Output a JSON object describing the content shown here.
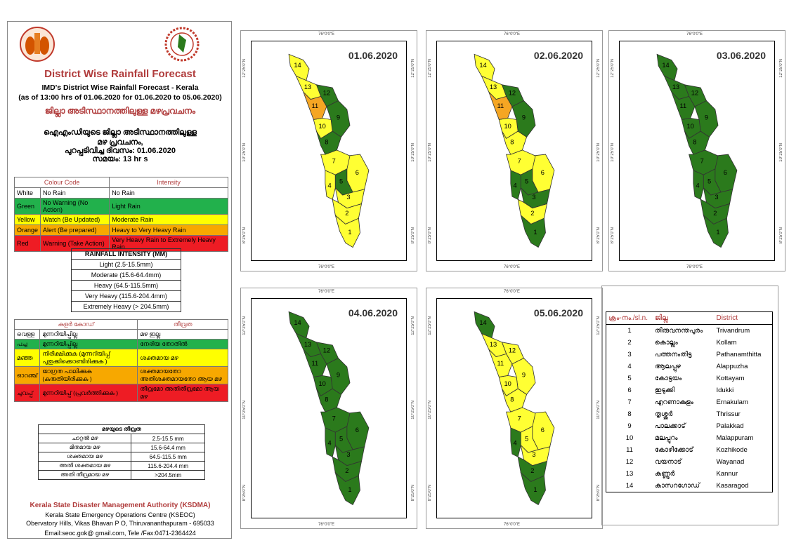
{
  "left_panel": {
    "title": "District Wise Rainfall Forecast",
    "subtitle1": "IMD's District Wise Rainfall Forecast - Kerala",
    "subtitle2": "(as of 13:00 hrs of 01.06.2020  for 01.06.2020  to 05.06.2020)",
    "ml_title": "ജില്ലാ അടിസ്ഥാനത്തിലുള്ള മഴപ്രവചനം",
    "ml_line1": "ഐഎംഡിയുടെ ജില്ലാ  അടിസ്ഥാനത്തിലുള്ള",
    "ml_line2": "മഴ പ്രവചനം,",
    "ml_line3": "പുറപ്പടിവിച്ച   ദിവസം: 01.06.2020",
    "ml_line4": "സമയം: 13 hr s",
    "color_table": {
      "header_code": "Colour Code",
      "header_intensity": "Intensity",
      "rows": [
        {
          "color": "White",
          "meaning": "No Rain",
          "intensity": "No Rain",
          "cls": "bg-white"
        },
        {
          "color": "Green",
          "meaning": "No Warning (No Action)",
          "intensity": "Light Rain",
          "cls": "bg-green"
        },
        {
          "color": "Yellow",
          "meaning": "Watch (Be Updated)",
          "intensity": "Moderate Rain",
          "cls": "bg-yellow"
        },
        {
          "color": "Orange",
          "meaning": "Alert (Be prepared)",
          "intensity": "Heavy to Very Heavy Rain",
          "cls": "bg-orange"
        },
        {
          "color": "Red",
          "meaning": "Warning (Take Action)",
          "intensity": "Very Heavy Rain to Extremely Heavy Rain",
          "cls": "bg-red"
        }
      ]
    },
    "intensity_table": {
      "header": "RAINFALL INTENSITY (MM)",
      "rows": [
        "Light (2.5-15.5mm)",
        "Moderate (15.6-64.4mm)",
        "Heavy (64.5-115.5mm)",
        "Very Heavy (115.6-204.4mm)",
        "Extremely Heavy (> 204.5mm)"
      ]
    },
    "ml_color_table": {
      "header_code": "കളർ കോഡ്",
      "header_intensity": "തീവ്രത",
      "rows": [
        {
          "color": "വെള്ള",
          "meaning": "മുന്നറിയിപ്പില്ല",
          "intensity": "മഴ ഇല്ല",
          "cls": "bg-white"
        },
        {
          "color": "പച്ച",
          "meaning": "മുന്നറിയിപ്പില്ല",
          "intensity": "നേരിയ തോതിൽ",
          "cls": "bg-green"
        },
        {
          "color": "മഞ്ഞ",
          "meaning": "നിരീക്ഷിക്കുക (മുന്നറിയിപ്പ് പുതുക്കിക്കൊണ്ടിരിക്കുക )",
          "intensity": "ശക്തമായ മഴ",
          "cls": "bg-yellow"
        },
        {
          "color": "ഓറഞ്ച്",
          "meaning": "ജാഗ്രത പാലിക്കുക (കരുതിയിരിക്കുക )",
          "intensity": "ശക്തമായതോ അതിശക്തമായതോ ആയ മഴ",
          "cls": "bg-orange"
        },
        {
          "color": "ചുവപ്പ്",
          "meaning": "മുന്നറിയിപ്പ് (പ്രവർത്തിക്കുക )",
          "intensity": "തീവ്രമോ അതിതീവ്രമോ ആയ മഴ",
          "cls": "bg-red"
        }
      ]
    },
    "ml_intensity_table": {
      "header": "മഴയുടെ  തീവ്രത",
      "rows": [
        {
          "label": "ചാറ്റൽ  മഴ",
          "range": "2.5-15.5 mm"
        },
        {
          "label": "മിതമായ  മഴ",
          "range": "15.6-64.4 mm"
        },
        {
          "label": "ശക്തമായ  മഴ",
          "range": "64.5-115.5 mm"
        },
        {
          "label": "അതി ശക്തമായ  മഴ",
          "range": "115.6-204.4 mm"
        },
        {
          "label": "അതി തീവ്രമായ  മഴ",
          "range": ">204.5mm"
        }
      ]
    },
    "footer": {
      "org": "Kerala State Disaster Management Authority (KSDMA)",
      "line1": "Kerala State Emergency Operations Centre (KSEOC)",
      "line2": "Obervatory Hills, Vikas Bhavan P O, Thiruvananthapuram - 695033",
      "line3": "Email:seoc.gok@ gmail.com, Tele /Fax:0471-2364424"
    }
  },
  "tick_labels": {
    "lon": "76°0'0\"E",
    "lat1": "12°25'0\"N",
    "lat2": "10°25'0\"N",
    "lat3": "8°25'0\"N"
  },
  "maps": [
    {
      "date": "01.06.2020",
      "colors": {
        "1": "yellow",
        "2": "yellow",
        "3": "yellow",
        "4": "yellow",
        "5": "green",
        "6": "yellow",
        "7": "yellow",
        "8": "green",
        "9": "green",
        "10": "yellow",
        "11": "orange",
        "12": "green",
        "13": "yellow",
        "14": "yellow"
      }
    },
    {
      "date": "02.06.2020",
      "colors": {
        "1": "green",
        "2": "yellow",
        "3": "green",
        "4": "green",
        "5": "green",
        "6": "yellow",
        "7": "yellow",
        "8": "yellow",
        "9": "green",
        "10": "yellow",
        "11": "orange",
        "12": "green",
        "13": "yellow",
        "14": "yellow"
      }
    },
    {
      "date": "03.06.2020",
      "colors": {
        "1": "green",
        "2": "green",
        "3": "green",
        "4": "green",
        "5": "green",
        "6": "green",
        "7": "green",
        "8": "green",
        "9": "green",
        "10": "green",
        "11": "green",
        "12": "green",
        "13": "green",
        "14": "green"
      }
    },
    {
      "date": "04.06.2020",
      "colors": {
        "1": "green",
        "2": "green",
        "3": "green",
        "4": "green",
        "5": "green",
        "6": "green",
        "7": "green",
        "8": "green",
        "9": "green",
        "10": "green",
        "11": "green",
        "12": "green",
        "13": "green",
        "14": "green"
      }
    },
    {
      "date": "05.06.2020",
      "colors": {
        "1": "green",
        "2": "green",
        "3": "yellow",
        "4": "green",
        "5": "yellow",
        "6": "yellow",
        "7": "yellow",
        "8": "yellow",
        "9": "yellow",
        "10": "yellow",
        "11": "yellow",
        "12": "yellow",
        "13": "yellow",
        "14": "green"
      }
    }
  ],
  "palette": {
    "green": "#2b7a1c",
    "yellow": "#ffff33",
    "orange": "#f5a623",
    "red": "#ee1c24",
    "white": "#ffffff"
  },
  "legend": {
    "headers": [
      "ക്രം-നം./sl.n.",
      "ജില്ല",
      "District"
    ],
    "rows": [
      {
        "no": "1",
        "ml": "തിരുവനന്തപുരം",
        "en": "Trivandrum"
      },
      {
        "no": "2",
        "ml": "കൊല്ലം",
        "en": "Kollam"
      },
      {
        "no": "3",
        "ml": "പത്തനംതിട്ട",
        "en": "Pathanamthitta"
      },
      {
        "no": "4",
        "ml": "ആലപ്പുഴ",
        "en": "Alappuzha"
      },
      {
        "no": "5",
        "ml": "കോട്ടയം",
        "en": "Kottayam"
      },
      {
        "no": "6",
        "ml": "ഇടുക്കി",
        "en": "Idukki"
      },
      {
        "no": "7",
        "ml": "എറണാകുളം",
        "en": "Ernakulam"
      },
      {
        "no": "8",
        "ml": "തൃശ്ശൂർ",
        "en": "Thrissur"
      },
      {
        "no": "9",
        "ml": "പാലക്കാട്",
        "en": "Palakkad"
      },
      {
        "no": "10",
        "ml": "മലപ്പുറം",
        "en": "Malappuram"
      },
      {
        "no": "11",
        "ml": "കോഴിക്കോട്",
        "en": "Kozhikode"
      },
      {
        "no": "12",
        "ml": "വയനാട്",
        "en": "Wayanad"
      },
      {
        "no": "13",
        "ml": "കണ്ണൂർ",
        "en": "Kannur"
      },
      {
        "no": "14",
        "ml": "കാസറഗോഡ്",
        "en": "Kasaragod"
      }
    ]
  }
}
